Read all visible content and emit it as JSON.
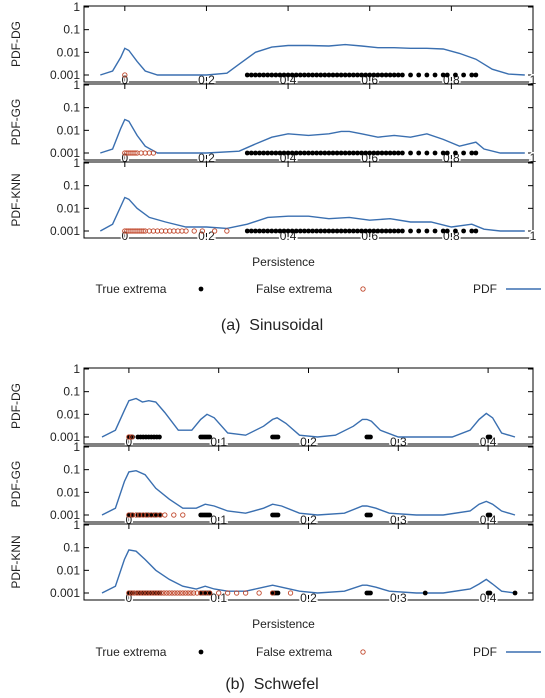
{
  "colors": {
    "pdf": "#3a6fb0",
    "true_extrema": "#000000",
    "false_extrema": "#c0462a",
    "frame": "#000000"
  },
  "chart_data": [
    {
      "caption": "(a)  Sinusoidal",
      "type": "line",
      "xlabel": "Persistence",
      "xlim": [
        -0.1,
        1.0
      ],
      "xticks": [
        "0",
        "0.2",
        "0.4",
        "0.6",
        "0.8",
        "1"
      ],
      "log_y": true,
      "ylim": [
        0.001,
        1
      ],
      "legend": {
        "placement": "bottom",
        "true_label": "True extrema",
        "false_label": "False extrema",
        "pdf_label": "PDF"
      },
      "panels": [
        {
          "ylabel": "PDF-DG",
          "yticks": [
            "1",
            "0.1",
            "0.01",
            "0.001"
          ],
          "show_xtick_labels": true,
          "pdf": {
            "x": [
              -0.06,
              -0.03,
              -0.01,
              0.0,
              0.01,
              0.03,
              0.05,
              0.08,
              0.12,
              0.2,
              0.25,
              0.28,
              0.32,
              0.36,
              0.4,
              0.45,
              0.5,
              0.54,
              0.58,
              0.62,
              0.66,
              0.7,
              0.74,
              0.78,
              0.82,
              0.86,
              0.9,
              0.94,
              0.98
            ],
            "y": [
              0.001,
              0.0015,
              0.006,
              0.015,
              0.012,
              0.004,
              0.0015,
              0.001,
              0.001,
              0.001,
              0.0012,
              0.003,
              0.01,
              0.017,
              0.02,
              0.02,
              0.019,
              0.022,
              0.019,
              0.016,
              0.016,
              0.015,
              0.015,
              0.014,
              0.009,
              0.005,
              0.0018,
              0.0011,
              0.001
            ]
          },
          "true_extrema": [
            0.3,
            0.31,
            0.32,
            0.33,
            0.34,
            0.35,
            0.36,
            0.37,
            0.38,
            0.39,
            0.4,
            0.41,
            0.42,
            0.43,
            0.44,
            0.45,
            0.46,
            0.47,
            0.48,
            0.49,
            0.5,
            0.51,
            0.52,
            0.53,
            0.54,
            0.55,
            0.56,
            0.57,
            0.58,
            0.59,
            0.6,
            0.61,
            0.62,
            0.63,
            0.64,
            0.65,
            0.66,
            0.67,
            0.68,
            0.7,
            0.72,
            0.74,
            0.76,
            0.78,
            0.79,
            0.81,
            0.83,
            0.85,
            0.86
          ],
          "false_extrema": [
            0.0
          ]
        },
        {
          "ylabel": "PDF-GG",
          "yticks": [
            "1",
            "0.1",
            "0.01",
            "0.001"
          ],
          "show_xtick_labels": true,
          "pdf": {
            "x": [
              -0.06,
              -0.03,
              -0.01,
              0.0,
              0.01,
              0.03,
              0.05,
              0.08,
              0.12,
              0.2,
              0.28,
              0.32,
              0.36,
              0.4,
              0.45,
              0.5,
              0.53,
              0.55,
              0.58,
              0.62,
              0.66,
              0.7,
              0.74,
              0.78,
              0.82,
              0.86,
              0.88,
              0.92,
              0.98
            ],
            "y": [
              0.001,
              0.0015,
              0.012,
              0.03,
              0.025,
              0.006,
              0.002,
              0.001,
              0.001,
              0.001,
              0.0012,
              0.0025,
              0.005,
              0.007,
              0.006,
              0.007,
              0.009,
              0.009,
              0.007,
              0.005,
              0.006,
              0.005,
              0.007,
              0.004,
              0.002,
              0.003,
              0.0015,
              0.001,
              0.001
            ]
          },
          "true_extrema": [
            0.3,
            0.31,
            0.32,
            0.33,
            0.34,
            0.35,
            0.36,
            0.37,
            0.38,
            0.39,
            0.4,
            0.41,
            0.42,
            0.43,
            0.44,
            0.45,
            0.46,
            0.47,
            0.48,
            0.49,
            0.5,
            0.51,
            0.52,
            0.53,
            0.54,
            0.55,
            0.56,
            0.57,
            0.58,
            0.59,
            0.6,
            0.61,
            0.62,
            0.63,
            0.64,
            0.65,
            0.66,
            0.67,
            0.68,
            0.7,
            0.72,
            0.74,
            0.76,
            0.78,
            0.79,
            0.81,
            0.83,
            0.85,
            0.86
          ],
          "false_extrema": [
            0.0,
            0.005,
            0.01,
            0.015,
            0.02,
            0.025,
            0.03,
            0.04,
            0.05,
            0.06,
            0.07
          ]
        },
        {
          "ylabel": "PDF-KNN",
          "yticks": [
            "1",
            "0.1",
            "0.01",
            "0.001"
          ],
          "show_xtick_labels": true,
          "pdf": {
            "x": [
              -0.06,
              -0.03,
              -0.01,
              0.0,
              0.01,
              0.03,
              0.06,
              0.1,
              0.15,
              0.2,
              0.25,
              0.3,
              0.35,
              0.4,
              0.45,
              0.5,
              0.55,
              0.6,
              0.65,
              0.7,
              0.75,
              0.8,
              0.85,
              0.88,
              0.92,
              0.98
            ],
            "y": [
              0.001,
              0.002,
              0.012,
              0.03,
              0.025,
              0.01,
              0.004,
              0.0025,
              0.0015,
              0.0015,
              0.0013,
              0.002,
              0.004,
              0.0045,
              0.0045,
              0.0035,
              0.004,
              0.003,
              0.0035,
              0.0025,
              0.0025,
              0.0015,
              0.002,
              0.0012,
              0.001,
              0.001
            ]
          },
          "true_extrema": [
            0.3,
            0.31,
            0.32,
            0.33,
            0.34,
            0.35,
            0.36,
            0.37,
            0.38,
            0.39,
            0.4,
            0.41,
            0.42,
            0.43,
            0.44,
            0.45,
            0.46,
            0.47,
            0.48,
            0.49,
            0.5,
            0.51,
            0.52,
            0.53,
            0.54,
            0.55,
            0.56,
            0.57,
            0.58,
            0.59,
            0.6,
            0.61,
            0.62,
            0.63,
            0.64,
            0.65,
            0.66,
            0.67,
            0.68,
            0.7,
            0.72,
            0.74,
            0.76,
            0.78,
            0.79,
            0.81,
            0.83,
            0.85,
            0.86
          ],
          "false_extrema": [
            0.0,
            0.005,
            0.01,
            0.015,
            0.02,
            0.025,
            0.03,
            0.035,
            0.04,
            0.045,
            0.05,
            0.06,
            0.07,
            0.08,
            0.09,
            0.1,
            0.11,
            0.12,
            0.13,
            0.14,
            0.15,
            0.17,
            0.19,
            0.22,
            0.25
          ]
        }
      ]
    },
    {
      "caption": "(b)  Schwefel",
      "type": "line",
      "xlabel": "Persistence",
      "xlim": [
        -0.05,
        0.45
      ],
      "xticks": [
        "0",
        "0.1",
        "0.2",
        "0.3",
        "0.4"
      ],
      "log_y": true,
      "ylim": [
        0.001,
        1
      ],
      "legend": {
        "placement": "bottom",
        "true_label": "True extrema",
        "false_label": "False extrema",
        "pdf_label": "PDF"
      },
      "panels": [
        {
          "ylabel": "PDF-DG",
          "yticks": [
            "1",
            "0.1",
            "0.01",
            "0.001"
          ],
          "show_xtick_labels": true,
          "pdf": {
            "x": [
              -0.03,
              -0.015,
              -0.005,
              0.0,
              0.008,
              0.015,
              0.022,
              0.03,
              0.04,
              0.055,
              0.07,
              0.08,
              0.087,
              0.095,
              0.11,
              0.13,
              0.15,
              0.16,
              0.165,
              0.175,
              0.19,
              0.21,
              0.23,
              0.25,
              0.26,
              0.265,
              0.27,
              0.28,
              0.3,
              0.33,
              0.36,
              0.38,
              0.39,
              0.398,
              0.405,
              0.415,
              0.43
            ],
            "y": [
              0.001,
              0.002,
              0.015,
              0.04,
              0.05,
              0.035,
              0.04,
              0.035,
              0.012,
              0.002,
              0.002,
              0.006,
              0.01,
              0.007,
              0.0015,
              0.0012,
              0.003,
              0.006,
              0.007,
              0.004,
              0.0012,
              0.001,
              0.0012,
              0.003,
              0.006,
              0.006,
              0.005,
              0.002,
              0.001,
              0.001,
              0.001,
              0.002,
              0.006,
              0.011,
              0.007,
              0.0015,
              0.001
            ]
          },
          "true_extrema": [
            0.0,
            0.002,
            0.004,
            0.01,
            0.013,
            0.016,
            0.019,
            0.022,
            0.025,
            0.028,
            0.031,
            0.034,
            0.08,
            0.082,
            0.084,
            0.086,
            0.088,
            0.09,
            0.16,
            0.162,
            0.164,
            0.166,
            0.265,
            0.267,
            0.269,
            0.4,
            0.402
          ],
          "false_extrema": [
            0.0,
            0.003
          ]
        },
        {
          "ylabel": "PDF-GG",
          "yticks": [
            "1",
            "0.1",
            "0.01",
            "0.001"
          ],
          "show_xtick_labels": true,
          "pdf": {
            "x": [
              -0.03,
              -0.015,
              -0.005,
              0.0,
              0.008,
              0.018,
              0.03,
              0.045,
              0.06,
              0.075,
              0.085,
              0.095,
              0.11,
              0.13,
              0.15,
              0.16,
              0.17,
              0.19,
              0.21,
              0.24,
              0.26,
              0.265,
              0.275,
              0.29,
              0.32,
              0.35,
              0.38,
              0.39,
              0.398,
              0.405,
              0.415,
              0.43
            ],
            "y": [
              0.001,
              0.002,
              0.03,
              0.08,
              0.09,
              0.06,
              0.015,
              0.005,
              0.002,
              0.002,
              0.003,
              0.0025,
              0.0015,
              0.0012,
              0.002,
              0.003,
              0.0025,
              0.0012,
              0.001,
              0.0012,
              0.0025,
              0.0025,
              0.002,
              0.0012,
              0.001,
              0.001,
              0.0015,
              0.003,
              0.004,
              0.003,
              0.0015,
              0.001
            ]
          },
          "true_extrema": [
            0.0,
            0.002,
            0.004,
            0.01,
            0.013,
            0.016,
            0.019,
            0.022,
            0.025,
            0.028,
            0.031,
            0.034,
            0.08,
            0.082,
            0.084,
            0.086,
            0.088,
            0.09,
            0.16,
            0.162,
            0.164,
            0.166,
            0.265,
            0.267,
            0.269,
            0.4,
            0.402
          ],
          "false_extrema": [
            0.0,
            0.004,
            0.008,
            0.012,
            0.016,
            0.02,
            0.025,
            0.03,
            0.035,
            0.04,
            0.05,
            0.06
          ]
        },
        {
          "ylabel": "PDF-KNN",
          "yticks": [
            "1",
            "0.1",
            "0.01",
            "0.001"
          ],
          "show_xtick_labels": true,
          "pdf": {
            "x": [
              -0.03,
              -0.015,
              -0.005,
              0.0,
              0.008,
              0.018,
              0.03,
              0.045,
              0.06,
              0.075,
              0.085,
              0.095,
              0.11,
              0.13,
              0.15,
              0.16,
              0.17,
              0.19,
              0.21,
              0.24,
              0.26,
              0.265,
              0.275,
              0.29,
              0.32,
              0.35,
              0.38,
              0.39,
              0.398,
              0.405,
              0.415,
              0.43
            ],
            "y": [
              0.001,
              0.002,
              0.03,
              0.08,
              0.07,
              0.03,
              0.01,
              0.004,
              0.002,
              0.0015,
              0.002,
              0.0015,
              0.0012,
              0.0012,
              0.0018,
              0.0022,
              0.0018,
              0.0012,
              0.001,
              0.0012,
              0.0022,
              0.0022,
              0.0018,
              0.0012,
              0.001,
              0.001,
              0.0015,
              0.0025,
              0.004,
              0.0025,
              0.0012,
              0.001
            ]
          },
          "true_extrema": [
            0.0,
            0.002,
            0.004,
            0.01,
            0.013,
            0.016,
            0.019,
            0.022,
            0.025,
            0.028,
            0.031,
            0.034,
            0.08,
            0.082,
            0.084,
            0.086,
            0.088,
            0.09,
            0.16,
            0.162,
            0.164,
            0.166,
            0.265,
            0.267,
            0.269,
            0.33,
            0.4,
            0.402,
            0.43
          ],
          "false_extrema": [
            0.0,
            0.003,
            0.006,
            0.009,
            0.012,
            0.015,
            0.018,
            0.021,
            0.024,
            0.027,
            0.03,
            0.033,
            0.036,
            0.039,
            0.042,
            0.045,
            0.048,
            0.051,
            0.054,
            0.057,
            0.06,
            0.063,
            0.066,
            0.069,
            0.072,
            0.076,
            0.08,
            0.085,
            0.09,
            0.1,
            0.11,
            0.12,
            0.13,
            0.145,
            0.16,
            0.18
          ]
        }
      ]
    }
  ]
}
